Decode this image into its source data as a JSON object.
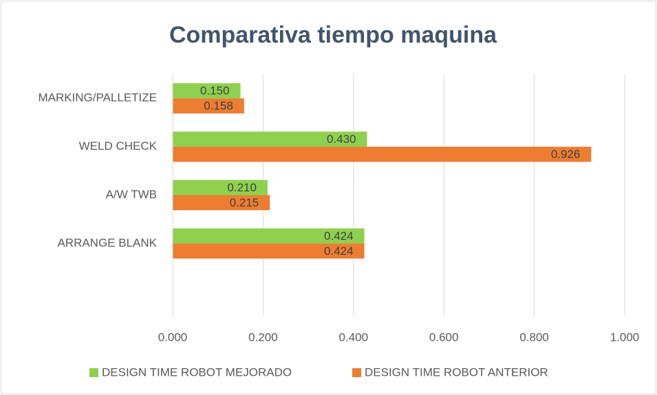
{
  "chart_data": {
    "type": "barh",
    "title": "Comparativa tiempo maquina",
    "categories": [
      "MARKING/PALLETIZE",
      "WELD CHECK",
      "A/W TWB",
      "ARRANGE BLANK",
      null
    ],
    "series": [
      {
        "name": "DESIGN TIME ROBOT MEJORADO",
        "color": "#8fd14f",
        "values": [
          0.15,
          0.43,
          0.21,
          0.424,
          null
        ],
        "value_labels": [
          "0.150",
          "0.430",
          "0.210",
          "0.424",
          null
        ]
      },
      {
        "name": "DESIGN TIME ROBOT ANTERIOR",
        "color": "#ed7d31",
        "values": [
          0.158,
          0.926,
          0.215,
          0.424,
          null
        ],
        "value_labels": [
          "0.158",
          "0.926",
          "0.215",
          "0.424",
          null
        ]
      }
    ],
    "xlim": [
      0,
      1
    ],
    "xticks": [
      {
        "value": 0,
        "label": "0.000"
      },
      {
        "value": 0.2,
        "label": "0.200"
      },
      {
        "value": 0.4,
        "label": "0.400"
      },
      {
        "value": 0.6,
        "label": "0.600"
      },
      {
        "value": 0.8,
        "label": "0.800"
      },
      {
        "value": 1,
        "label": "1.000"
      }
    ],
    "grid": true,
    "legend": "bottom"
  }
}
